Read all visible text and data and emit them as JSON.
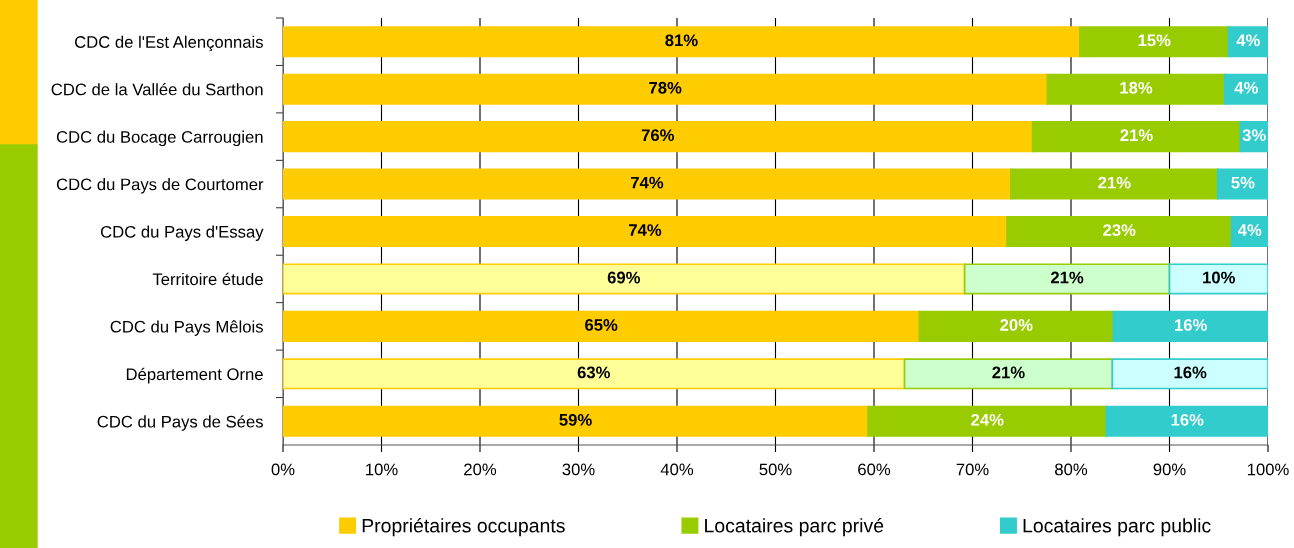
{
  "chart_data": {
    "type": "bar",
    "orientation": "horizontal",
    "stacked": true,
    "categories": [
      "CDC de l'Est Alençonnais",
      "CDC de la Vallée du Sarthon",
      "CDC du Bocage Carrougien",
      "CDC du Pays de Courtomer",
      "CDC du Pays d'Essay",
      "Territoire étude",
      "CDC du Pays Mêlois",
      "Département Orne",
      "CDC du Pays de Sées"
    ],
    "series": [
      {
        "name": "Propriétaires occupants",
        "color": "#ffcc00",
        "colors": [
          "#ffcc00",
          "#ffcc00",
          "#ffcc00",
          "#ffcc00",
          "#ffcc00",
          "#ffff99",
          "#ffcc00",
          "#ffff99",
          "#ffcc00"
        ],
        "values": [
          80.9,
          77.6,
          76.1,
          73.9,
          73.5,
          69.2,
          64.6,
          63.1,
          59.4
        ],
        "value_labels": [
          "81%",
          "78%",
          "76%",
          "74%",
          "74%",
          "69%",
          "65%",
          "63%",
          "59%"
        ]
      },
      {
        "name": "Locataires parc privé",
        "color": "#99cc00",
        "colors": [
          "#99cc00",
          "#99cc00",
          "#99cc00",
          "#99cc00",
          "#99cc00",
          "#ccffcc",
          "#99cc00",
          "#ccffcc",
          "#99cc00"
        ],
        "values": [
          15.1,
          18.0,
          21.1,
          21.0,
          22.8,
          20.8,
          19.7,
          21.1,
          24.2
        ],
        "value_labels": [
          "15%",
          "18%",
          "21%",
          "21%",
          "23%",
          "21%",
          "20%",
          "21%",
          "24%"
        ]
      },
      {
        "name": "Locataires parc public",
        "color": "#33cccc",
        "colors": [
          "#33cccc",
          "#33cccc",
          "#33cccc",
          "#33cccc",
          "#33cccc",
          "#ccffff",
          "#33cccc",
          "#ccffff",
          "#33cccc"
        ],
        "values": [
          4.0,
          4.4,
          2.8,
          5.1,
          3.7,
          10.0,
          15.7,
          15.8,
          16.4
        ],
        "value_labels": [
          "4%",
          "4%",
          "3%",
          "5%",
          "4%",
          "10%",
          "16%",
          "16%",
          "16%"
        ]
      }
    ],
    "xlim": [
      0,
      100
    ],
    "xticks": [
      {
        "value": 0,
        "label": "0%"
      },
      {
        "value": 10,
        "label": "10%"
      },
      {
        "value": 20,
        "label": "20%"
      },
      {
        "value": 30,
        "label": "30%"
      },
      {
        "value": 40,
        "label": "40%"
      },
      {
        "value": 50,
        "label": "50%"
      },
      {
        "value": 60,
        "label": "60%"
      },
      {
        "value": 70,
        "label": "70%"
      },
      {
        "value": 80,
        "label": "80%"
      },
      {
        "value": 90,
        "label": "90%"
      },
      {
        "value": 100,
        "label": "100%"
      }
    ],
    "grid": "x",
    "legend": "bottom"
  }
}
